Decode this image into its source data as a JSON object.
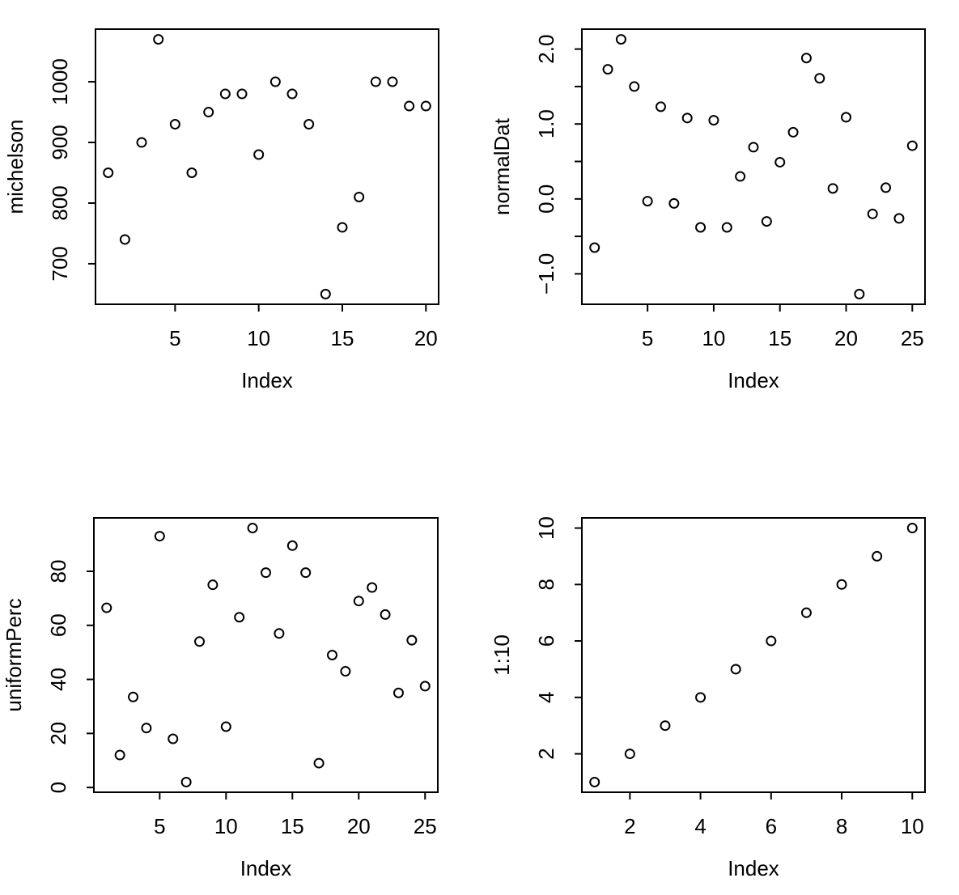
{
  "figure": {
    "background": "#ffffff",
    "foreground": "#000000",
    "description": "2x2 grid of R base scatter plots"
  },
  "chart_data": [
    {
      "type": "scatter",
      "panel": "top-left",
      "title": "",
      "xlabel": "Index",
      "ylabel": "michelson",
      "marker": "open-circle",
      "grid": false,
      "legend": null,
      "x": [
        1,
        2,
        3,
        4,
        5,
        6,
        7,
        8,
        9,
        10,
        11,
        12,
        13,
        14,
        15,
        16,
        17,
        18,
        19,
        20
      ],
      "y": [
        850,
        740,
        900,
        1070,
        930,
        850,
        950,
        980,
        980,
        880,
        1000,
        980,
        930,
        650,
        760,
        810,
        1000,
        1000,
        960,
        960
      ],
      "xlim": [
        0.24,
        20.76
      ],
      "ylim": [
        633.2,
        1086.8
      ],
      "xticks": {
        "values": [
          5,
          10,
          15,
          20
        ],
        "labels": [
          "5",
          "10",
          "15",
          "20"
        ]
      },
      "yticks": {
        "values": [
          700,
          800,
          900,
          1000
        ],
        "labels": [
          "700",
          "800",
          "900",
          "1000"
        ]
      }
    },
    {
      "type": "scatter",
      "panel": "top-right",
      "title": "",
      "xlabel": "Index",
      "ylabel": "normalDat",
      "marker": "open-circle",
      "grid": false,
      "legend": null,
      "x": [
        1,
        2,
        3,
        4,
        5,
        6,
        7,
        8,
        9,
        10,
        11,
        12,
        13,
        14,
        15,
        16,
        17,
        18,
        19,
        20,
        21,
        22,
        23,
        24,
        25
      ],
      "y": [
        -0.65,
        1.73,
        2.13,
        1.5,
        -0.03,
        1.23,
        -0.06,
        1.08,
        -0.38,
        1.05,
        -0.38,
        0.3,
        0.69,
        -0.3,
        0.49,
        0.89,
        1.88,
        1.61,
        0.14,
        1.09,
        -1.27,
        -0.2,
        0.15,
        -0.26,
        0.71
      ],
      "xlim": [
        0.04,
        25.96
      ],
      "ylim": [
        -1.406,
        2.266
      ],
      "xticks": {
        "values": [
          5,
          10,
          15,
          20,
          25
        ],
        "labels": [
          "5",
          "10",
          "15",
          "20",
          "25"
        ]
      },
      "yticks": {
        "values": [
          -1.0,
          -0.5,
          0.0,
          0.5,
          1.0,
          1.5,
          2.0
        ],
        "labels": [
          "−1.0",
          "",
          "0.0",
          "",
          "1.0",
          "",
          "2.0"
        ]
      }
    },
    {
      "type": "scatter",
      "panel": "bottom-left",
      "title": "",
      "xlabel": "Index",
      "ylabel": "uniformPerc",
      "marker": "open-circle",
      "grid": false,
      "legend": null,
      "x": [
        1,
        2,
        3,
        4,
        5,
        6,
        7,
        8,
        9,
        10,
        11,
        12,
        13,
        14,
        15,
        16,
        17,
        18,
        19,
        20,
        21,
        22,
        23,
        24,
        25
      ],
      "y": [
        66.5,
        12,
        33.5,
        22,
        93,
        18,
        2,
        54,
        75,
        22.5,
        63,
        96,
        79.5,
        57,
        89.5,
        79.5,
        9,
        49,
        43,
        69,
        74,
        64,
        35,
        54.5,
        37.5
      ],
      "xlim": [
        0.04,
        25.96
      ],
      "ylim": [
        -1.76,
        99.76
      ],
      "xticks": {
        "values": [
          5,
          10,
          15,
          20,
          25
        ],
        "labels": [
          "5",
          "10",
          "15",
          "20",
          "25"
        ]
      },
      "yticks": {
        "values": [
          0,
          20,
          40,
          60,
          80
        ],
        "labels": [
          "0",
          "20",
          "40",
          "60",
          "80"
        ]
      }
    },
    {
      "type": "scatter",
      "panel": "bottom-right",
      "title": "",
      "xlabel": "Index",
      "ylabel": "1:10",
      "marker": "open-circle",
      "grid": false,
      "legend": null,
      "x": [
        1,
        2,
        3,
        4,
        5,
        6,
        7,
        8,
        9,
        10
      ],
      "y": [
        1,
        2,
        3,
        4,
        5,
        6,
        7,
        8,
        9,
        10
      ],
      "xlim": [
        0.64,
        10.36
      ],
      "ylim": [
        0.64,
        10.36
      ],
      "xticks": {
        "values": [
          2,
          4,
          6,
          8,
          10
        ],
        "labels": [
          "2",
          "4",
          "6",
          "8",
          "10"
        ]
      },
      "yticks": {
        "values": [
          2,
          4,
          6,
          8,
          10
        ],
        "labels": [
          "2",
          "4",
          "6",
          "8",
          "10"
        ]
      }
    }
  ]
}
